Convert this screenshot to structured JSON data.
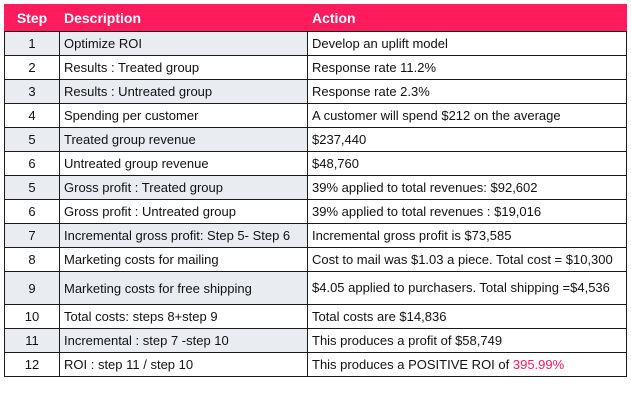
{
  "table": {
    "headers": {
      "step": "Step",
      "description": "Description",
      "action": "Action"
    },
    "rows": [
      {
        "step": "1",
        "description": "Optimize ROI",
        "action": "Develop an uplift model"
      },
      {
        "step": "2",
        "description": "Results : Treated group",
        "action": "Response rate 11.2%"
      },
      {
        "step": "3",
        "description": "Results : Untreated group",
        "action": "Response rate 2.3%"
      },
      {
        "step": "4",
        "description": "Spending per customer",
        "action": "A customer will spend $212 on the average"
      },
      {
        "step": "5",
        "description": "Treated group revenue",
        "action": "$237,440"
      },
      {
        "step": "6",
        "description": "Untreated group revenue",
        "action": "$48,760"
      },
      {
        "step": "5",
        "description": "Gross profit : Treated group",
        "action": "39% applied to total revenues: $92,602"
      },
      {
        "step": "6",
        "description": "Gross profit : Untreated group",
        "action": "39% applied to total revenues : $19,016"
      },
      {
        "step": "7",
        "description": "Incremental gross profit: Step 5- Step 6",
        "action": "Incremental gross profit is $73,585"
      },
      {
        "step": "8",
        "description": "Marketing costs for mailing",
        "action": "Cost to mail was $1.03 a piece. Total cost = $10,300"
      },
      {
        "step": "9",
        "description": "Marketing costs for free shipping",
        "action": "$4.05 applied to purchasers. Total shipping =$4,536"
      },
      {
        "step": "10",
        "description": "Total costs: steps 8+step 9",
        "action": "Total costs are $14,836"
      },
      {
        "step": "11",
        "description": "Incremental : step 7 -step 10",
        "action": "This produces a profit of  $58,749"
      },
      {
        "step": "12",
        "description": "ROI : step 11 / step 10",
        "action": "This produces a POSITIVE ROI of ",
        "action_highlight": "395.99%"
      }
    ]
  },
  "colors": {
    "header_bg": "#ff1b5c",
    "highlight": "#ff1b5c",
    "row_shade": "#e9edf2"
  }
}
